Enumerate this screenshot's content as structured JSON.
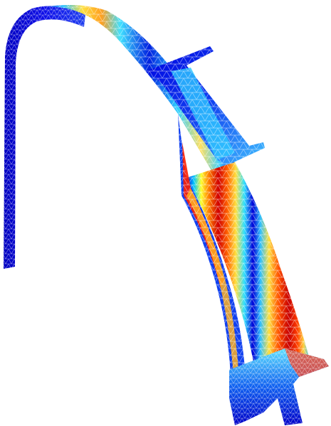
{
  "scene": {
    "type": "finite-element stress plot of curved beam (jet colormap, triangular mesh)",
    "background_color": "#ffffff",
    "mesh_line_color": "#ffffff",
    "colormap": [
      "#00008f",
      "#0000ff",
      "#0080ff",
      "#00ffff",
      "#80ff80",
      "#ffff00",
      "#ff8000",
      "#ff0000",
      "#800000"
    ]
  }
}
